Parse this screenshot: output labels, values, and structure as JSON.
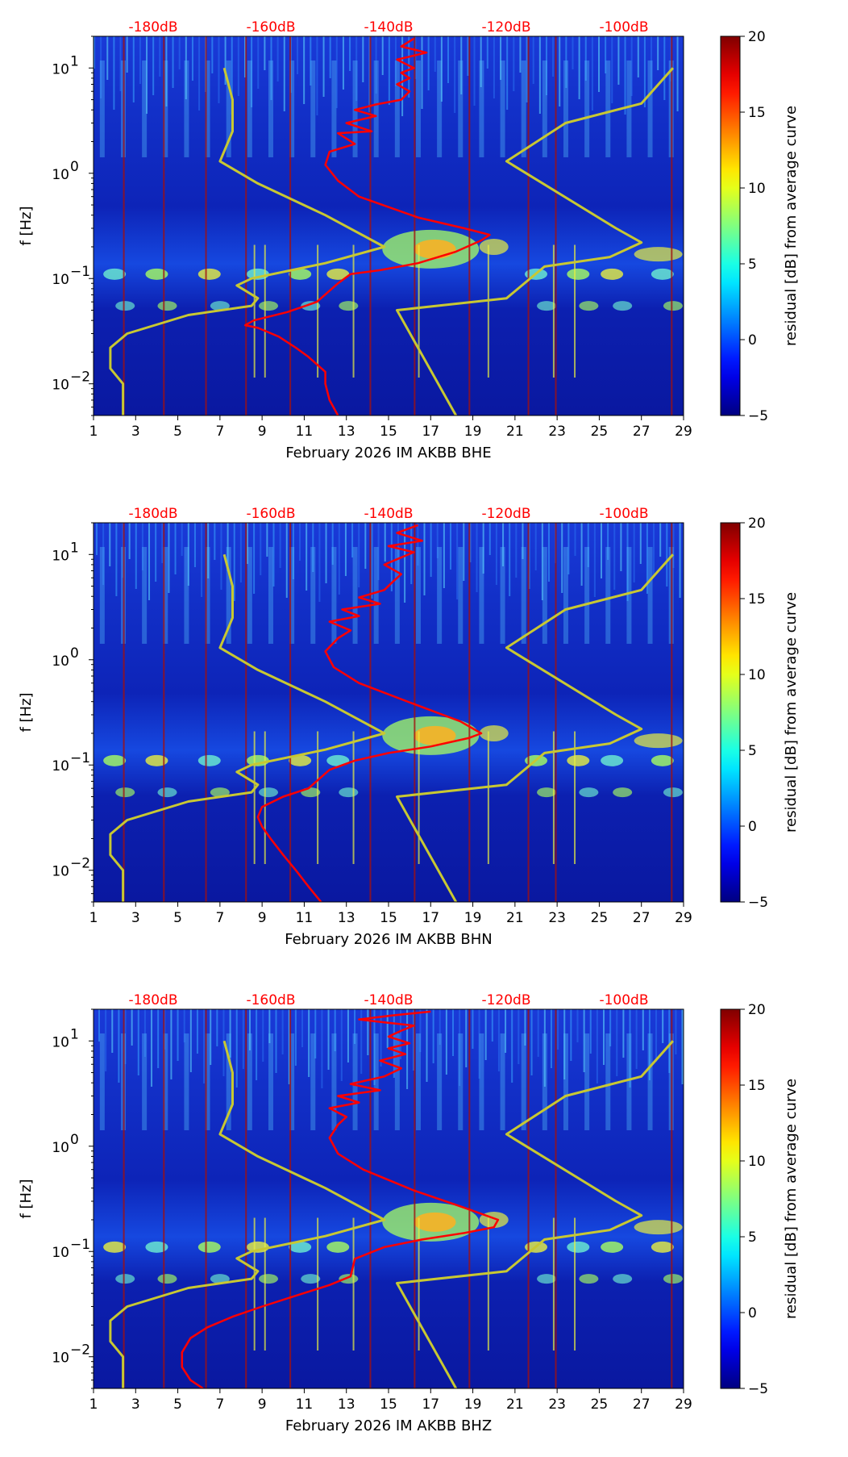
{
  "chart_data": [
    {
      "type": "heatmap",
      "title": "",
      "xlabel": "February 2026 IM AKBB  BHE",
      "ylabel": "f [Hz]",
      "colorbar_label": "residual [dB] from average curve",
      "colorbar_ticks": [
        "20",
        "15",
        "10",
        "5",
        "0",
        "−5"
      ],
      "colorbar_range": [
        -5,
        20
      ],
      "x_ticks": [
        "1",
        "3",
        "5",
        "7",
        "9",
        "11",
        "13",
        "15",
        "17",
        "19",
        "21",
        "23",
        "25",
        "27",
        "29"
      ],
      "y_ticks": [
        {
          "base": "10",
          "exp": "1"
        },
        {
          "base": "10",
          "exp": "0"
        },
        {
          "base": "10",
          "exp": "−1"
        },
        {
          "base": "10",
          "exp": "−2"
        }
      ],
      "top_ticks": [
        "-180dB",
        "-160dB",
        "-140dB",
        "-120dB",
        "-100dB"
      ],
      "xlim": [
        1,
        29
      ],
      "ylim": [
        0.005,
        20
      ],
      "series": [
        {
          "name": "average-psd",
          "color": "#ff0000",
          "x": [
            12.6,
            12.2,
            12.0,
            12.0,
            11.2,
            10.6,
            9.8,
            8.8,
            8.2,
            8.6,
            10.2,
            11.6,
            12.6,
            13.2,
            14.6,
            16.4,
            18.2,
            19.4,
            19.8,
            18.6,
            16.4,
            13.6,
            12.6,
            12.0,
            12.2,
            13.4,
            12.6,
            14.2,
            13.0,
            14.4,
            13.4,
            14.4,
            15.6,
            16.0,
            15.4,
            16.0,
            15.6,
            16.2,
            15.4,
            16.8,
            15.6,
            16.2
          ],
          "y": [
            0.005,
            0.007,
            0.01,
            0.013,
            0.018,
            0.022,
            0.028,
            0.034,
            0.036,
            0.04,
            0.048,
            0.06,
            0.09,
            0.11,
            0.12,
            0.14,
            0.18,
            0.23,
            0.26,
            0.3,
            0.38,
            0.6,
            0.85,
            1.2,
            1.6,
            1.9,
            2.4,
            2.5,
            3.0,
            3.5,
            4.0,
            4.5,
            5.0,
            6.0,
            7.0,
            8.0,
            9.0,
            10.0,
            12.0,
            14.0,
            16.0,
            19.0
          ]
        },
        {
          "name": "low-noise-model",
          "color": "#c8c832",
          "x": [
            2.4,
            2.4,
            1.8,
            1.8,
            2.6,
            5.5,
            8.5,
            8.8,
            7.8,
            8.5,
            12.0,
            14.8,
            12.0,
            8.8,
            7.0,
            7.6,
            7.6,
            7.2
          ],
          "y": [
            0.005,
            0.01,
            0.014,
            0.022,
            0.03,
            0.045,
            0.055,
            0.065,
            0.086,
            0.1,
            0.14,
            0.2,
            0.4,
            0.8,
            1.3,
            2.5,
            5.0,
            10.0
          ]
        },
        {
          "name": "high-noise-model",
          "color": "#c8c832",
          "x": [
            18.2,
            15.4,
            20.6,
            22.4,
            25.5,
            27.0,
            25.8,
            20.6,
            23.4,
            27.0,
            28.5
          ],
          "y": [
            0.005,
            0.05,
            0.065,
            0.13,
            0.16,
            0.22,
            0.3,
            1.3,
            3.0,
            4.6,
            10.0
          ]
        }
      ]
    },
    {
      "type": "heatmap",
      "title": "",
      "xlabel": "February 2026 IM AKBB  BHN",
      "ylabel": "f [Hz]",
      "colorbar_label": "residual [dB] from average curve",
      "colorbar_ticks": [
        "20",
        "15",
        "10",
        "5",
        "0",
        "−5"
      ],
      "colorbar_range": [
        -5,
        20
      ],
      "x_ticks": [
        "1",
        "3",
        "5",
        "7",
        "9",
        "11",
        "13",
        "15",
        "17",
        "19",
        "21",
        "23",
        "25",
        "27",
        "29"
      ],
      "y_ticks": [
        {
          "base": "10",
          "exp": "1"
        },
        {
          "base": "10",
          "exp": "0"
        },
        {
          "base": "10",
          "exp": "−1"
        },
        {
          "base": "10",
          "exp": "−2"
        }
      ],
      "top_ticks": [
        "-180dB",
        "-160dB",
        "-140dB",
        "-120dB",
        "-100dB"
      ],
      "xlim": [
        1,
        29
      ],
      "ylim": [
        0.005,
        20
      ],
      "series": [
        {
          "name": "average-psd",
          "color": "#ff0000",
          "x": [
            11.8,
            11.2,
            10.6,
            10.0,
            9.4,
            9.0,
            8.8,
            9.0,
            10.0,
            11.2,
            12.2,
            13.4,
            15.0,
            17.0,
            18.8,
            19.4,
            18.4,
            16.2,
            13.6,
            12.4,
            12.0,
            12.6,
            13.2,
            12.2,
            13.6,
            12.8,
            14.6,
            13.6,
            14.8,
            15.2,
            15.6,
            14.8,
            15.4,
            16.2,
            15.0,
            16.6,
            15.4,
            16.4
          ],
          "y": [
            0.005,
            0.007,
            0.01,
            0.014,
            0.02,
            0.026,
            0.032,
            0.04,
            0.05,
            0.06,
            0.09,
            0.11,
            0.13,
            0.15,
            0.18,
            0.2,
            0.26,
            0.38,
            0.6,
            0.85,
            1.2,
            1.6,
            1.9,
            2.3,
            2.6,
            3.0,
            3.4,
            3.9,
            4.6,
            5.5,
            6.5,
            8.0,
            9.0,
            10.5,
            12.0,
            13.5,
            16.0,
            19.0
          ]
        },
        {
          "name": "low-noise-model",
          "color": "#c8c832",
          "x": [
            2.4,
            2.4,
            1.8,
            1.8,
            2.6,
            5.5,
            8.5,
            8.8,
            7.8,
            8.5,
            12.0,
            14.8,
            12.0,
            8.8,
            7.0,
            7.6,
            7.6,
            7.2
          ],
          "y": [
            0.005,
            0.01,
            0.014,
            0.022,
            0.03,
            0.045,
            0.055,
            0.065,
            0.086,
            0.1,
            0.14,
            0.2,
            0.4,
            0.8,
            1.3,
            2.5,
            5.0,
            10.0
          ]
        },
        {
          "name": "high-noise-model",
          "color": "#c8c832",
          "x": [
            18.2,
            15.4,
            20.6,
            22.4,
            25.5,
            27.0,
            25.8,
            20.6,
            23.4,
            27.0,
            28.5
          ],
          "y": [
            0.005,
            0.05,
            0.065,
            0.13,
            0.16,
            0.22,
            0.3,
            1.3,
            3.0,
            4.6,
            10.0
          ]
        }
      ]
    },
    {
      "type": "heatmap",
      "title": "",
      "xlabel": "February 2026 IM AKBB  BHZ",
      "ylabel": "f [Hz]",
      "colorbar_label": "residual [dB] from average curve",
      "colorbar_ticks": [
        "20",
        "15",
        "10",
        "5",
        "0",
        "−5"
      ],
      "colorbar_range": [
        -5,
        20
      ],
      "x_ticks": [
        "1",
        "3",
        "5",
        "7",
        "9",
        "11",
        "13",
        "15",
        "17",
        "19",
        "21",
        "23",
        "25",
        "27",
        "29"
      ],
      "y_ticks": [
        {
          "base": "10",
          "exp": "1"
        },
        {
          "base": "10",
          "exp": "0"
        },
        {
          "base": "10",
          "exp": "−1"
        },
        {
          "base": "10",
          "exp": "−2"
        }
      ],
      "top_ticks": [
        "-180dB",
        "-160dB",
        "-140dB",
        "-120dB",
        "-100dB"
      ],
      "xlim": [
        1,
        29
      ],
      "ylim": [
        0.005,
        20
      ],
      "series": [
        {
          "name": "average-psd",
          "color": "#ff0000",
          "x": [
            6.2,
            5.6,
            5.2,
            5.2,
            5.6,
            6.4,
            7.6,
            9.0,
            10.6,
            12.2,
            13.2,
            13.4,
            14.8,
            16.6,
            18.6,
            20.0,
            20.2,
            18.6,
            16.2,
            13.8,
            12.6,
            12.2,
            12.6,
            13.0,
            12.2,
            13.6,
            12.6,
            14.6,
            13.2,
            14.8,
            15.6,
            14.6,
            15.8,
            15.0,
            16.0,
            15.0,
            15.6,
            16.2,
            14.8,
            13.6,
            15.2,
            17.0
          ],
          "y": [
            0.005,
            0.006,
            0.008,
            0.011,
            0.015,
            0.019,
            0.024,
            0.03,
            0.038,
            0.048,
            0.058,
            0.085,
            0.11,
            0.13,
            0.15,
            0.17,
            0.2,
            0.26,
            0.38,
            0.6,
            0.85,
            1.2,
            1.6,
            1.9,
            2.3,
            2.6,
            3.0,
            3.4,
            3.9,
            4.6,
            5.5,
            6.5,
            7.5,
            8.5,
            9.5,
            11.0,
            12.5,
            14.0,
            15.0,
            16.0,
            17.5,
            19.0
          ]
        },
        {
          "name": "low-noise-model",
          "color": "#c8c832",
          "x": [
            2.4,
            2.4,
            1.8,
            1.8,
            2.6,
            5.5,
            8.5,
            8.8,
            7.8,
            8.5,
            12.0,
            14.8,
            12.0,
            8.8,
            7.0,
            7.6,
            7.6,
            7.2
          ],
          "y": [
            0.005,
            0.01,
            0.014,
            0.022,
            0.03,
            0.045,
            0.055,
            0.065,
            0.086,
            0.1,
            0.14,
            0.2,
            0.4,
            0.8,
            1.3,
            2.5,
            5.0,
            10.0
          ]
        },
        {
          "name": "high-noise-model",
          "color": "#c8c832",
          "x": [
            18.2,
            15.4,
            20.6,
            22.4,
            25.5,
            27.0,
            25.8,
            20.6,
            23.4,
            27.0,
            28.5
          ],
          "y": [
            0.005,
            0.05,
            0.065,
            0.13,
            0.16,
            0.22,
            0.3,
            1.3,
            3.0,
            4.6,
            10.0
          ]
        }
      ]
    }
  ]
}
